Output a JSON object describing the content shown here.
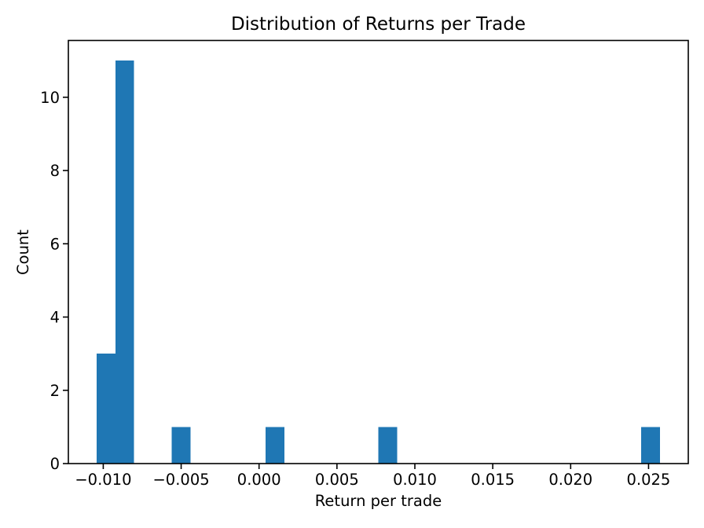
{
  "figure": {
    "background_color": "#ffffff"
  },
  "chart_data": {
    "type": "bar",
    "subtype": "histogram",
    "title": "Distribution of Returns per Trade",
    "xlabel": "Return per trade",
    "ylabel": "Count",
    "bar_color": "#1f77b4",
    "axis_color": "#000000",
    "grid": false,
    "legend": false,
    "xlim": [
      -0.01224,
      0.02755
    ],
    "ylim": [
      0,
      11.55
    ],
    "bin_width": 0.0012056,
    "x_ticks": [
      {
        "value": -0.01,
        "label": "−0.010"
      },
      {
        "value": -0.005,
        "label": "−0.005"
      },
      {
        "value": 0.0,
        "label": "0.000"
      },
      {
        "value": 0.005,
        "label": "0.005"
      },
      {
        "value": 0.01,
        "label": "0.010"
      },
      {
        "value": 0.015,
        "label": "0.015"
      },
      {
        "value": 0.02,
        "label": "0.020"
      },
      {
        "value": 0.025,
        "label": "0.025"
      }
    ],
    "y_ticks": [
      {
        "value": 0,
        "label": "0"
      },
      {
        "value": 2,
        "label": "2"
      },
      {
        "value": 4,
        "label": "4"
      },
      {
        "value": 6,
        "label": "6"
      },
      {
        "value": 8,
        "label": "8"
      },
      {
        "value": 10,
        "label": "10"
      }
    ],
    "bars": [
      {
        "x0": -0.010431,
        "x1": -0.009225,
        "count": 3
      },
      {
        "x0": -0.009225,
        "x1": -0.00802,
        "count": 11
      },
      {
        "x0": -0.005609,
        "x1": -0.004403,
        "count": 1
      },
      {
        "x0": 0.000419,
        "x1": 0.001625,
        "count": 1
      },
      {
        "x0": 0.007653,
        "x1": 0.008859,
        "count": 1
      },
      {
        "x0": 0.024531,
        "x1": 0.025737,
        "count": 1
      }
    ]
  }
}
